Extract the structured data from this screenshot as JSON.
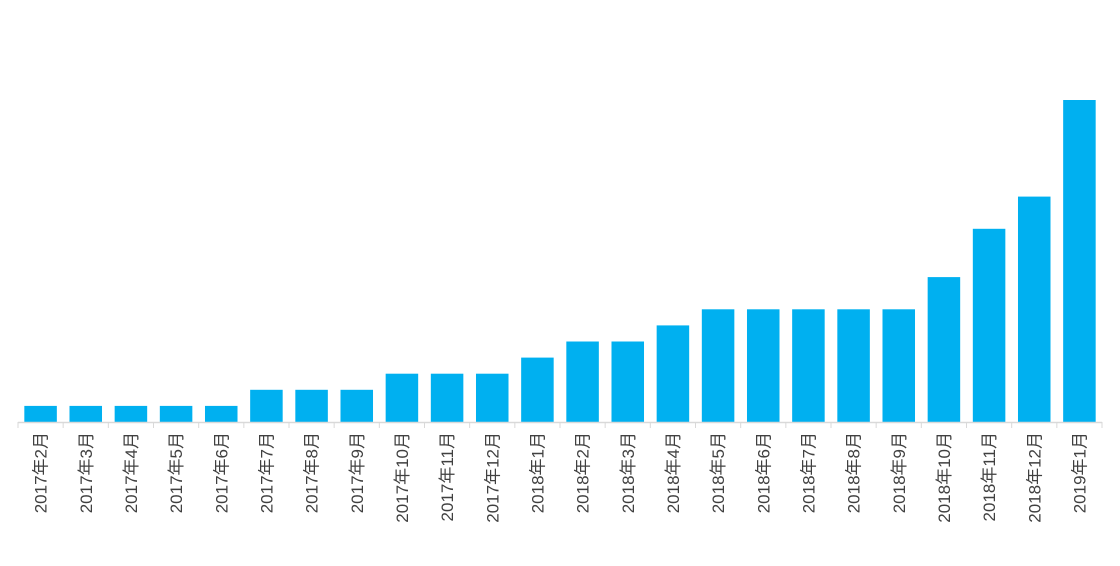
{
  "chart_data": {
    "type": "bar",
    "title": "",
    "xlabel": "",
    "ylabel": "",
    "ylim": [
      0,
      20
    ],
    "grid": false,
    "legend": "none",
    "bar_color": "#00b0f0",
    "categories": [
      "2017年2月",
      "2017年3月",
      "2017年4月",
      "2017年5月",
      "2017年6月",
      "2017年7月",
      "2017年8月",
      "2017年9月",
      "2017年10月",
      "2017年11月",
      "2017年12月",
      "2018年1月",
      "2018年2月",
      "2018年3月",
      "2018年4月",
      "2018年5月",
      "2018年6月",
      "2018年7月",
      "2018年8月",
      "2018年9月",
      "2018年10月",
      "2018年11月",
      "2018年12月",
      "2019年1月"
    ],
    "values": [
      1,
      1,
      1,
      1,
      1,
      2,
      2,
      2,
      3,
      3,
      3,
      4,
      5,
      5,
      6,
      7,
      7,
      7,
      7,
      7,
      9,
      12,
      14,
      20
    ]
  }
}
